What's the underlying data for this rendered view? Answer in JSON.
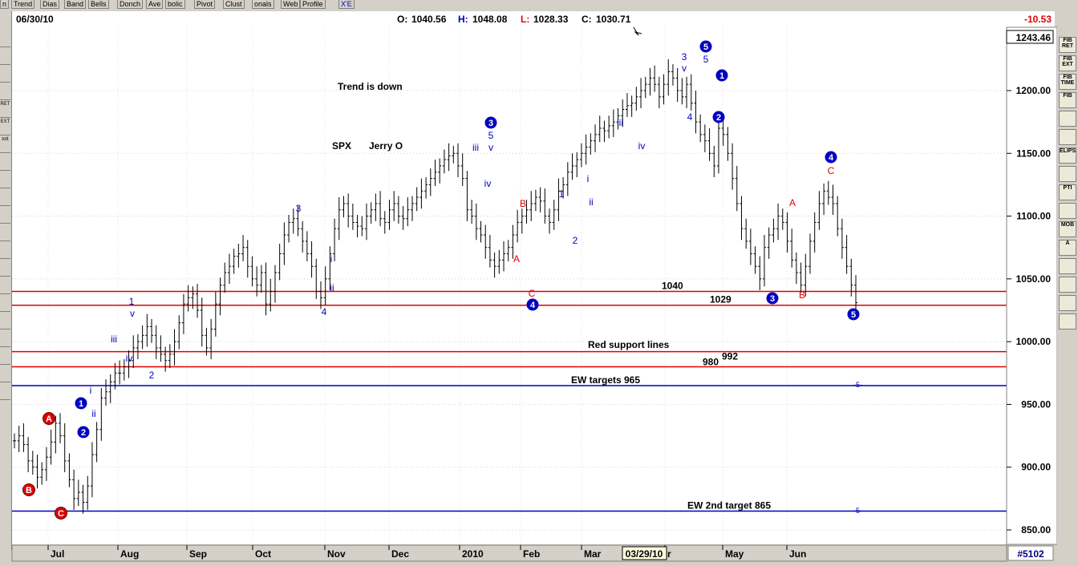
{
  "toolbar_tabs": [
    "n",
    "Trend",
    "Dias",
    "Band",
    "Bells",
    "Donch",
    "Ave",
    "bolic",
    "Pivot",
    "Clust",
    "onals",
    "Web",
    "Profile"
  ],
  "toolbar_tab_extra": "X'E",
  "header": {
    "date": "06/30/10",
    "open_label": "O:",
    "open_value": "1040.56",
    "high_label": "H:",
    "high_value": "1048.08",
    "low_label": "L:",
    "low_value": "1028.33",
    "close_label": "C:",
    "close_value": "1030.71",
    "change": "-10.53"
  },
  "right_toolbar": [
    "FIB RET",
    "FIB EXT",
    "FIB TIME",
    "FIB",
    "",
    "",
    "ELIPS",
    "",
    "PTI",
    "",
    "MOB",
    "A",
    "",
    "",
    "",
    ""
  ],
  "left_toolbar": [
    "",
    "",
    "",
    "",
    "RET",
    "EXT",
    "tott",
    "",
    "",
    "",
    "",
    "",
    "",
    "",
    "",
    "",
    "",
    "",
    "",
    "",
    ""
  ],
  "chart_data": {
    "type": "bar",
    "symbol_text": "SPX",
    "author_text": "Jerry O",
    "last_price_label": "1243.46",
    "price_axis_ticks": [
      "1200.00",
      "1150.00",
      "1100.00",
      "1050.00",
      "1000.00",
      "950.00",
      "900.00",
      "850.00"
    ],
    "time_axis_labels": [
      "Jul",
      "Aug",
      "Sep",
      "Oct",
      "Nov",
      "Dec",
      "2010",
      "Feb",
      "Mar",
      "r",
      "May",
      "Jun"
    ],
    "cursor_date": "03/29/10",
    "chart_id": "#5102",
    "horizontal_lines": [
      {
        "price": 1040,
        "color": "#e00000",
        "label": "1040"
      },
      {
        "price": 1029,
        "color": "#e00000",
        "label": "1029"
      },
      {
        "price": 992,
        "color": "#e00000",
        "label": "992"
      },
      {
        "price": 980,
        "color": "#e00000",
        "label": "980"
      },
      {
        "price": 965,
        "color": "#0000c0",
        "label": "EW targets  965"
      },
      {
        "price": 865,
        "color": "#0000c0",
        "label": "EW 2nd target 865"
      }
    ],
    "annotations": {
      "trend": "Trend is down",
      "support": "Red support  lines",
      "target_mark": "-5-"
    },
    "wave_labels": {
      "circled_blue": [
        "1",
        "2",
        "3",
        "4",
        "5",
        "1",
        "2",
        "3",
        "4",
        "5"
      ],
      "circled_red": [
        "A",
        "B",
        "C"
      ],
      "blue_text": [
        "1",
        "v",
        "iii",
        "iv",
        "2",
        "i",
        "ii",
        "3",
        "i",
        "ii",
        "4",
        "iii",
        "iv",
        "5",
        "v",
        "1",
        "2",
        "i",
        "ii",
        "iii",
        "iv",
        "3",
        "v",
        "5",
        "4"
      ],
      "red_text": [
        "B",
        "A",
        "C",
        "A",
        "B",
        "C"
      ]
    },
    "prices": [
      921,
      925,
      918,
      905,
      900,
      892,
      898,
      908,
      920,
      935,
      925,
      905,
      890,
      875,
      880,
      872,
      885,
      910,
      930,
      955,
      960,
      968,
      975,
      975,
      980,
      985,
      995,
      1000,
      1005,
      1012,
      1005,
      995,
      990,
      985,
      990,
      1000,
      1015,
      1030,
      1035,
      1038,
      1025,
      1005,
      995,
      1010,
      1030,
      1045,
      1055,
      1060,
      1068,
      1070,
      1075,
      1060,
      1050,
      1045,
      1055,
      1030,
      1040,
      1055,
      1070,
      1085,
      1095,
      1098,
      1090,
      1080,
      1070,
      1060,
      1040,
      1035,
      1050,
      1070,
      1090,
      1105,
      1110,
      1100,
      1095,
      1092,
      1090,
      1100,
      1105,
      1110,
      1098,
      1095,
      1105,
      1110,
      1100,
      1098,
      1105,
      1110,
      1115,
      1120,
      1125,
      1130,
      1135,
      1140,
      1145,
      1148,
      1150,
      1140,
      1130,
      1105,
      1100,
      1090,
      1085,
      1075,
      1065,
      1060,
      1065,
      1070,
      1075,
      1085,
      1095,
      1100,
      1105,
      1110,
      1115,
      1112,
      1100,
      1095,
      1105,
      1120,
      1125,
      1135,
      1140,
      1145,
      1150,
      1155,
      1160,
      1165,
      1170,
      1168,
      1172,
      1175,
      1180,
      1185,
      1188,
      1190,
      1195,
      1200,
      1205,
      1210,
      1205,
      1195,
      1205,
      1215,
      1210,
      1200,
      1195,
      1205,
      1190,
      1175,
      1165,
      1160,
      1150,
      1140,
      1170,
      1165,
      1150,
      1130,
      1110,
      1090,
      1080,
      1070,
      1060,
      1050,
      1075,
      1085,
      1090,
      1100,
      1095,
      1080,
      1065,
      1055,
      1045,
      1060,
      1080,
      1095,
      1110,
      1120,
      1115,
      1110,
      1090,
      1075,
      1060,
      1045,
      1031
    ]
  }
}
